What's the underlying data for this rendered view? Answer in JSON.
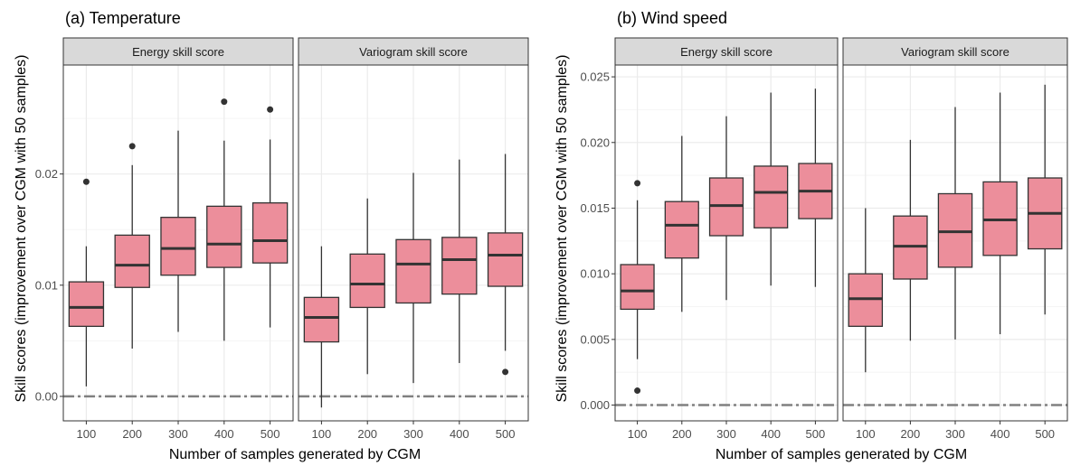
{
  "colors": {
    "box_fill": "#ec8e9b",
    "box_stroke": "#333333",
    "strip_fill": "#d9d9d9",
    "grid_major": "#ebebeb",
    "grid_minor": "#f5f5f5",
    "reference_line": "#808080",
    "outlier": "#333333"
  },
  "chart_data": [
    {
      "type": "boxplot",
      "title": "(a) Temperature",
      "xlabel": "Number of samples generated by CGM",
      "ylabel": "Skill scores (improvement over CGM with 50 samples)",
      "ylim": [
        -0.0022,
        0.0298
      ],
      "yticks": [
        0.0,
        0.01,
        0.02
      ],
      "ytick_labels": [
        "0.00",
        "0.01",
        "0.02"
      ],
      "categories": [
        "100",
        "200",
        "300",
        "400",
        "500"
      ],
      "reference_line": 0.0,
      "panels": [
        {
          "strip": "Energy skill score",
          "boxes": [
            {
              "whisker_low": 0.0009,
              "q1": 0.0063,
              "median": 0.008,
              "q3": 0.0103,
              "whisker_high": 0.0135,
              "outliers": [
                0.0193
              ]
            },
            {
              "whisker_low": 0.0043,
              "q1": 0.0098,
              "median": 0.0118,
              "q3": 0.0145,
              "whisker_high": 0.0208,
              "outliers": [
                0.0225
              ]
            },
            {
              "whisker_low": 0.0058,
              "q1": 0.0109,
              "median": 0.0133,
              "q3": 0.0161,
              "whisker_high": 0.0239,
              "outliers": []
            },
            {
              "whisker_low": 0.005,
              "q1": 0.0116,
              "median": 0.0137,
              "q3": 0.0171,
              "whisker_high": 0.023,
              "outliers": [
                0.0265
              ]
            },
            {
              "whisker_low": 0.0062,
              "q1": 0.012,
              "median": 0.014,
              "q3": 0.0174,
              "whisker_high": 0.0231,
              "outliers": [
                0.0258
              ]
            }
          ]
        },
        {
          "strip": "Variogram skill score",
          "boxes": [
            {
              "whisker_low": -0.001,
              "q1": 0.0049,
              "median": 0.0071,
              "q3": 0.0089,
              "whisker_high": 0.0135,
              "outliers": []
            },
            {
              "whisker_low": 0.002,
              "q1": 0.008,
              "median": 0.0101,
              "q3": 0.0128,
              "whisker_high": 0.0178,
              "outliers": []
            },
            {
              "whisker_low": 0.0012,
              "q1": 0.0084,
              "median": 0.0119,
              "q3": 0.0141,
              "whisker_high": 0.0201,
              "outliers": []
            },
            {
              "whisker_low": 0.003,
              "q1": 0.0092,
              "median": 0.0123,
              "q3": 0.0143,
              "whisker_high": 0.0213,
              "outliers": []
            },
            {
              "whisker_low": 0.0041,
              "q1": 0.0099,
              "median": 0.0127,
              "q3": 0.0147,
              "whisker_high": 0.0218,
              "outliers": [
                0.0022
              ]
            }
          ]
        }
      ]
    },
    {
      "type": "boxplot",
      "title": "(b) Wind speed",
      "xlabel": "Number of samples generated by CGM",
      "ylabel": "Skill scores (improvement over CGM with 50 samples)",
      "ylim": [
        -0.0012,
        0.0259
      ],
      "yticks": [
        0.0,
        0.005,
        0.01,
        0.015,
        0.02,
        0.025
      ],
      "ytick_labels": [
        "0.000",
        "0.005",
        "0.010",
        "0.015",
        "0.020",
        "0.025"
      ],
      "categories": [
        "100",
        "200",
        "300",
        "400",
        "500"
      ],
      "reference_line": 0.0,
      "panels": [
        {
          "strip": "Energy skill score",
          "boxes": [
            {
              "whisker_low": 0.0035,
              "q1": 0.0073,
              "median": 0.0087,
              "q3": 0.0107,
              "whisker_high": 0.0156,
              "outliers": [
                0.0169,
                0.0011
              ]
            },
            {
              "whisker_low": 0.0071,
              "q1": 0.0112,
              "median": 0.0137,
              "q3": 0.0155,
              "whisker_high": 0.0205,
              "outliers": []
            },
            {
              "whisker_low": 0.008,
              "q1": 0.0129,
              "median": 0.0152,
              "q3": 0.0173,
              "whisker_high": 0.022,
              "outliers": []
            },
            {
              "whisker_low": 0.0091,
              "q1": 0.0135,
              "median": 0.0162,
              "q3": 0.0182,
              "whisker_high": 0.0238,
              "outliers": []
            },
            {
              "whisker_low": 0.009,
              "q1": 0.0142,
              "median": 0.0163,
              "q3": 0.0184,
              "whisker_high": 0.0241,
              "outliers": []
            }
          ]
        },
        {
          "strip": "Variogram skill score",
          "boxes": [
            {
              "whisker_low": 0.0025,
              "q1": 0.006,
              "median": 0.0081,
              "q3": 0.01,
              "whisker_high": 0.015,
              "outliers": []
            },
            {
              "whisker_low": 0.0049,
              "q1": 0.0096,
              "median": 0.0121,
              "q3": 0.0144,
              "whisker_high": 0.0202,
              "outliers": []
            },
            {
              "whisker_low": 0.005,
              "q1": 0.0105,
              "median": 0.0132,
              "q3": 0.0161,
              "whisker_high": 0.0227,
              "outliers": []
            },
            {
              "whisker_low": 0.0054,
              "q1": 0.0114,
              "median": 0.0141,
              "q3": 0.017,
              "whisker_high": 0.0238,
              "outliers": []
            },
            {
              "whisker_low": 0.0069,
              "q1": 0.0119,
              "median": 0.0146,
              "q3": 0.0173,
              "whisker_high": 0.0244,
              "outliers": []
            }
          ]
        }
      ]
    }
  ]
}
